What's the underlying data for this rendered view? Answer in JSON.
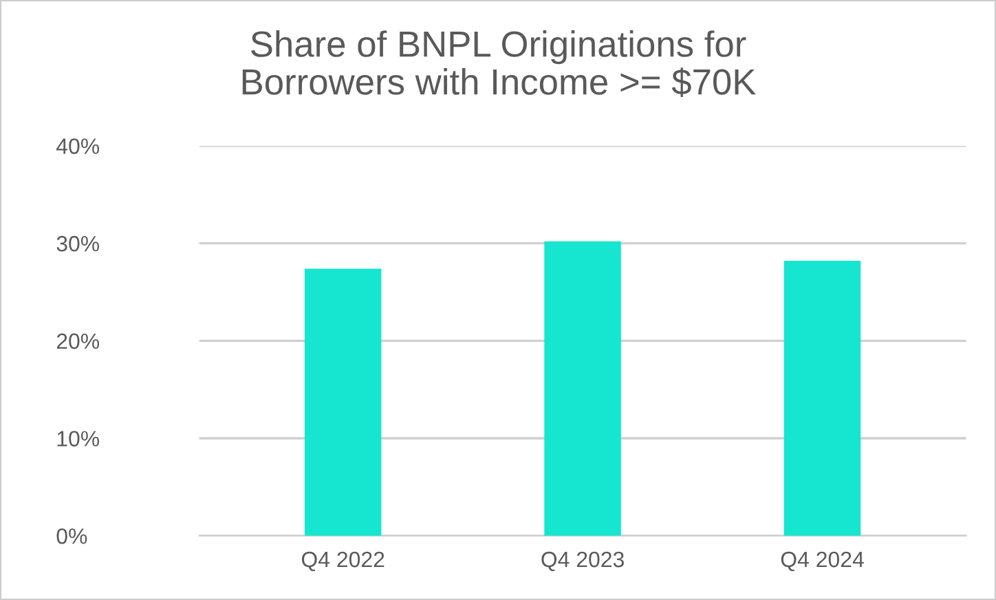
{
  "chart_data": {
    "type": "bar",
    "title": "Share of BNPL Originations for\nBorrowers with Income >= $70K",
    "categories": [
      "Q4 2022",
      "Q4 2023",
      "Q4 2024"
    ],
    "values": [
      27.4,
      30.2,
      28.2
    ],
    "color": "#16e6cf",
    "ylim": [
      0,
      40
    ],
    "yticks": [
      {
        "value": 0,
        "label": "0%"
      },
      {
        "value": 10,
        "label": "10%"
      },
      {
        "value": 20,
        "label": "20%"
      },
      {
        "value": 30,
        "label": "30%"
      },
      {
        "value": 40,
        "label": "40%"
      }
    ],
    "grid": "y",
    "legend": false
  }
}
